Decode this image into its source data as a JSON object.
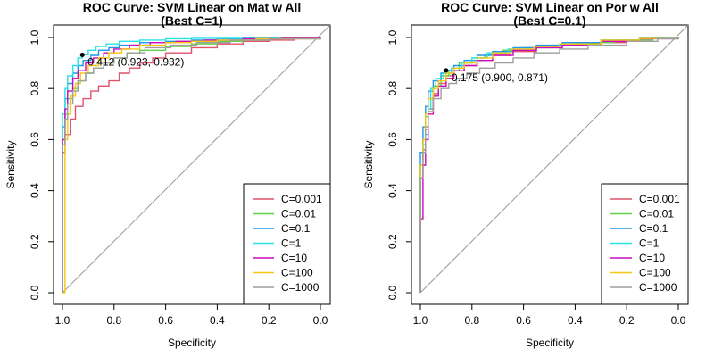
{
  "chart_data": [
    {
      "type": "line",
      "title": "ROC Curve: SVM Linear on Mat w All",
      "subtitle": "(Best C=1)",
      "xlabel": "Specificity",
      "ylabel": "Sensitivity",
      "xlim": [
        1.0,
        0.0
      ],
      "ylim": [
        0.0,
        1.0
      ],
      "xticks": [
        "1.0",
        "0.8",
        "0.6",
        "0.4",
        "0.2",
        "0.0"
      ],
      "yticks": [
        "0.0",
        "0.2",
        "0.4",
        "0.6",
        "0.8",
        "1.0"
      ],
      "legend_position": "bottom-right",
      "grid": false,
      "best_point": {
        "x": 0.923,
        "y": 0.932,
        "label": "0.412 (0.923, 0.932)"
      },
      "series": [
        {
          "name": "C=0.001",
          "color": "#DF536B",
          "points": [
            [
              1.0,
              0.0
            ],
            [
              1.0,
              0.55
            ],
            [
              0.99,
              0.62
            ],
            [
              0.97,
              0.68
            ],
            [
              0.95,
              0.73
            ],
            [
              0.92,
              0.76
            ],
            [
              0.89,
              0.79
            ],
            [
              0.86,
              0.81
            ],
            [
              0.82,
              0.83
            ],
            [
              0.78,
              0.86
            ],
            [
              0.74,
              0.88
            ],
            [
              0.7,
              0.9
            ],
            [
              0.65,
              0.92
            ],
            [
              0.6,
              0.94
            ],
            [
              0.5,
              0.96
            ],
            [
              0.4,
              0.975
            ],
            [
              0.3,
              0.985
            ],
            [
              0.2,
              0.99
            ],
            [
              0.1,
              0.995
            ],
            [
              0.0,
              1.0
            ]
          ]
        },
        {
          "name": "C=0.01",
          "color": "#61D04F",
          "points": [
            [
              1.0,
              0.0
            ],
            [
              1.0,
              0.6
            ],
            [
              0.99,
              0.7
            ],
            [
              0.98,
              0.76
            ],
            [
              0.96,
              0.8
            ],
            [
              0.94,
              0.83
            ],
            [
              0.91,
              0.86
            ],
            [
              0.88,
              0.88
            ],
            [
              0.84,
              0.9
            ],
            [
              0.8,
              0.92
            ],
            [
              0.75,
              0.94
            ],
            [
              0.7,
              0.95
            ],
            [
              0.6,
              0.965
            ],
            [
              0.5,
              0.975
            ],
            [
              0.4,
              0.985
            ],
            [
              0.3,
              0.99
            ],
            [
              0.2,
              0.995
            ],
            [
              0.0,
              1.0
            ]
          ]
        },
        {
          "name": "C=0.1",
          "color": "#2297E6",
          "points": [
            [
              1.0,
              0.0
            ],
            [
              1.0,
              0.65
            ],
            [
              0.99,
              0.76
            ],
            [
              0.98,
              0.82
            ],
            [
              0.96,
              0.86
            ],
            [
              0.94,
              0.89
            ],
            [
              0.92,
              0.91
            ],
            [
              0.89,
              0.93
            ],
            [
              0.86,
              0.95
            ],
            [
              0.82,
              0.96
            ],
            [
              0.78,
              0.97
            ],
            [
              0.7,
              0.98
            ],
            [
              0.6,
              0.985
            ],
            [
              0.5,
              0.99
            ],
            [
              0.4,
              0.995
            ],
            [
              0.2,
              0.998
            ],
            [
              0.0,
              1.0
            ]
          ]
        },
        {
          "name": "C=1",
          "color": "#28E2E5",
          "points": [
            [
              1.0,
              0.0
            ],
            [
              1.0,
              0.7
            ],
            [
              0.99,
              0.8
            ],
            [
              0.98,
              0.85
            ],
            [
              0.96,
              0.89
            ],
            [
              0.94,
              0.92
            ],
            [
              0.923,
              0.932
            ],
            [
              0.9,
              0.95
            ],
            [
              0.87,
              0.965
            ],
            [
              0.83,
              0.975
            ],
            [
              0.78,
              0.985
            ],
            [
              0.7,
              0.99
            ],
            [
              0.6,
              0.995
            ],
            [
              0.5,
              0.997
            ],
            [
              0.3,
              0.999
            ],
            [
              0.0,
              1.0
            ]
          ]
        },
        {
          "name": "C=10",
          "color": "#CD0BBC",
          "points": [
            [
              1.0,
              0.0
            ],
            [
              1.0,
              0.6
            ],
            [
              0.99,
              0.72
            ],
            [
              0.98,
              0.79
            ],
            [
              0.96,
              0.84
            ],
            [
              0.94,
              0.87
            ],
            [
              0.91,
              0.9
            ],
            [
              0.88,
              0.92
            ],
            [
              0.84,
              0.94
            ],
            [
              0.8,
              0.955
            ],
            [
              0.74,
              0.97
            ],
            [
              0.66,
              0.98
            ],
            [
              0.56,
              0.985
            ],
            [
              0.45,
              0.99
            ],
            [
              0.3,
              0.995
            ],
            [
              0.15,
              0.998
            ],
            [
              0.0,
              1.0
            ]
          ]
        },
        {
          "name": "C=100",
          "color": "#F5C710",
          "points": [
            [
              1.0,
              0.0
            ],
            [
              0.99,
              0.3
            ],
            [
              0.99,
              0.6
            ],
            [
              0.98,
              0.7
            ],
            [
              0.97,
              0.77
            ],
            [
              0.95,
              0.82
            ],
            [
              0.93,
              0.86
            ],
            [
              0.9,
              0.89
            ],
            [
              0.86,
              0.92
            ],
            [
              0.82,
              0.94
            ],
            [
              0.77,
              0.955
            ],
            [
              0.7,
              0.97
            ],
            [
              0.6,
              0.98
            ],
            [
              0.5,
              0.985
            ],
            [
              0.4,
              0.99
            ],
            [
              0.25,
              0.995
            ],
            [
              0.0,
              1.0
            ]
          ]
        },
        {
          "name": "C=1000",
          "color": "#9E9E9E",
          "points": [
            [
              1.0,
              0.0
            ],
            [
              1.0,
              0.58
            ],
            [
              0.99,
              0.68
            ],
            [
              0.98,
              0.74
            ],
            [
              0.96,
              0.79
            ],
            [
              0.94,
              0.83
            ],
            [
              0.91,
              0.86
            ],
            [
              0.88,
              0.88
            ],
            [
              0.84,
              0.9
            ],
            [
              0.8,
              0.92
            ],
            [
              0.75,
              0.94
            ],
            [
              0.68,
              0.96
            ],
            [
              0.58,
              0.97
            ],
            [
              0.48,
              0.98
            ],
            [
              0.35,
              0.99
            ],
            [
              0.2,
              0.995
            ],
            [
              0.0,
              1.0
            ]
          ]
        }
      ]
    },
    {
      "type": "line",
      "title": "ROC Curve: SVM Linear on Por w All",
      "subtitle": "(Best C=0.1)",
      "xlabel": "Specificity",
      "ylabel": "Sensitivity",
      "xlim": [
        1.0,
        0.0
      ],
      "ylim": [
        0.0,
        1.0
      ],
      "xticks": [
        "1.0",
        "0.8",
        "0.6",
        "0.4",
        "0.2",
        "0.0"
      ],
      "yticks": [
        "0.0",
        "0.2",
        "0.4",
        "0.6",
        "0.8",
        "1.0"
      ],
      "legend_position": "bottom-right",
      "grid": false,
      "best_point": {
        "x": 0.9,
        "y": 0.871,
        "label": "0.175 (0.900, 0.871)"
      },
      "series": [
        {
          "name": "C=0.001",
          "color": "#DF536B",
          "points": [
            [
              1.0,
              0.0
            ],
            [
              1.0,
              0.45
            ],
            [
              0.99,
              0.56
            ],
            [
              0.98,
              0.65
            ],
            [
              0.97,
              0.72
            ],
            [
              0.95,
              0.78
            ],
            [
              0.93,
              0.82
            ],
            [
              0.9,
              0.85
            ],
            [
              0.87,
              0.87
            ],
            [
              0.83,
              0.89
            ],
            [
              0.78,
              0.91
            ],
            [
              0.72,
              0.93
            ],
            [
              0.65,
              0.945
            ],
            [
              0.55,
              0.96
            ],
            [
              0.45,
              0.97
            ],
            [
              0.35,
              0.98
            ],
            [
              0.2,
              0.99
            ],
            [
              0.1,
              0.997
            ],
            [
              0.0,
              1.0
            ]
          ]
        },
        {
          "name": "C=0.01",
          "color": "#61D04F",
          "points": [
            [
              1.0,
              0.0
            ],
            [
              1.0,
              0.5
            ],
            [
              0.99,
              0.6
            ],
            [
              0.98,
              0.69
            ],
            [
              0.97,
              0.76
            ],
            [
              0.95,
              0.81
            ],
            [
              0.92,
              0.85
            ],
            [
              0.89,
              0.87
            ],
            [
              0.85,
              0.9
            ],
            [
              0.8,
              0.92
            ],
            [
              0.75,
              0.935
            ],
            [
              0.68,
              0.95
            ],
            [
              0.6,
              0.96
            ],
            [
              0.5,
              0.97
            ],
            [
              0.4,
              0.98
            ],
            [
              0.25,
              0.99
            ],
            [
              0.1,
              0.997
            ],
            [
              0.0,
              1.0
            ]
          ]
        },
        {
          "name": "C=0.1",
          "color": "#2297E6",
          "points": [
            [
              1.0,
              0.0
            ],
            [
              1.0,
              0.55
            ],
            [
              0.99,
              0.65
            ],
            [
              0.98,
              0.73
            ],
            [
              0.97,
              0.79
            ],
            [
              0.95,
              0.83
            ],
            [
              0.92,
              0.86
            ],
            [
              0.9,
              0.871
            ],
            [
              0.87,
              0.89
            ],
            [
              0.83,
              0.91
            ],
            [
              0.78,
              0.93
            ],
            [
              0.72,
              0.945
            ],
            [
              0.64,
              0.96
            ],
            [
              0.55,
              0.97
            ],
            [
              0.45,
              0.98
            ],
            [
              0.3,
              0.99
            ],
            [
              0.15,
              0.997
            ],
            [
              0.0,
              1.0
            ]
          ]
        },
        {
          "name": "C=1",
          "color": "#28E2E5",
          "points": [
            [
              1.0,
              0.0
            ],
            [
              1.0,
              0.5
            ],
            [
              0.99,
              0.58
            ],
            [
              0.98,
              0.62
            ],
            [
              0.97,
              0.72
            ],
            [
              0.96,
              0.8
            ],
            [
              0.94,
              0.84
            ],
            [
              0.91,
              0.86
            ],
            [
              0.88,
              0.88
            ],
            [
              0.84,
              0.9
            ],
            [
              0.8,
              0.92
            ],
            [
              0.74,
              0.94
            ],
            [
              0.66,
              0.955
            ],
            [
              0.56,
              0.965
            ],
            [
              0.46,
              0.975
            ],
            [
              0.3,
              0.99
            ],
            [
              0.15,
              0.997
            ],
            [
              0.0,
              1.0
            ]
          ]
        },
        {
          "name": "C=10",
          "color": "#CD0BBC",
          "points": [
            [
              1.0,
              0.0
            ],
            [
              1.0,
              0.29
            ],
            [
              0.99,
              0.5
            ],
            [
              0.98,
              0.6
            ],
            [
              0.97,
              0.7
            ],
            [
              0.95,
              0.77
            ],
            [
              0.93,
              0.81
            ],
            [
              0.9,
              0.84
            ],
            [
              0.87,
              0.87
            ],
            [
              0.83,
              0.89
            ],
            [
              0.78,
              0.91
            ],
            [
              0.72,
              0.93
            ],
            [
              0.64,
              0.95
            ],
            [
              0.55,
              0.96
            ],
            [
              0.45,
              0.97
            ],
            [
              0.3,
              0.985
            ],
            [
              0.15,
              0.995
            ],
            [
              0.0,
              1.0
            ]
          ]
        },
        {
          "name": "C=100",
          "color": "#F5C710",
          "points": [
            [
              1.0,
              0.0
            ],
            [
              1.0,
              0.5
            ],
            [
              0.99,
              0.6
            ],
            [
              0.98,
              0.7
            ],
            [
              0.97,
              0.76
            ],
            [
              0.95,
              0.8
            ],
            [
              0.93,
              0.83
            ],
            [
              0.9,
              0.86
            ],
            [
              0.87,
              0.88
            ],
            [
              0.83,
              0.9
            ],
            [
              0.78,
              0.92
            ],
            [
              0.72,
              0.94
            ],
            [
              0.65,
              0.955
            ],
            [
              0.56,
              0.965
            ],
            [
              0.46,
              0.975
            ],
            [
              0.3,
              0.99
            ],
            [
              0.15,
              0.996
            ],
            [
              0.0,
              1.0
            ]
          ]
        },
        {
          "name": "C=1000",
          "color": "#9E9E9E",
          "points": [
            [
              1.0,
              0.0
            ],
            [
              1.0,
              0.45
            ],
            [
              0.99,
              0.55
            ],
            [
              0.98,
              0.64
            ],
            [
              0.97,
              0.71
            ],
            [
              0.95,
              0.76
            ],
            [
              0.92,
              0.8
            ],
            [
              0.89,
              0.82
            ],
            [
              0.86,
              0.84
            ],
            [
              0.82,
              0.86
            ],
            [
              0.77,
              0.88
            ],
            [
              0.71,
              0.9
            ],
            [
              0.64,
              0.92
            ],
            [
              0.56,
              0.94
            ],
            [
              0.46,
              0.955
            ],
            [
              0.35,
              0.97
            ],
            [
              0.2,
              0.985
            ],
            [
              0.08,
              0.995
            ],
            [
              0.0,
              1.0
            ]
          ]
        }
      ]
    }
  ]
}
